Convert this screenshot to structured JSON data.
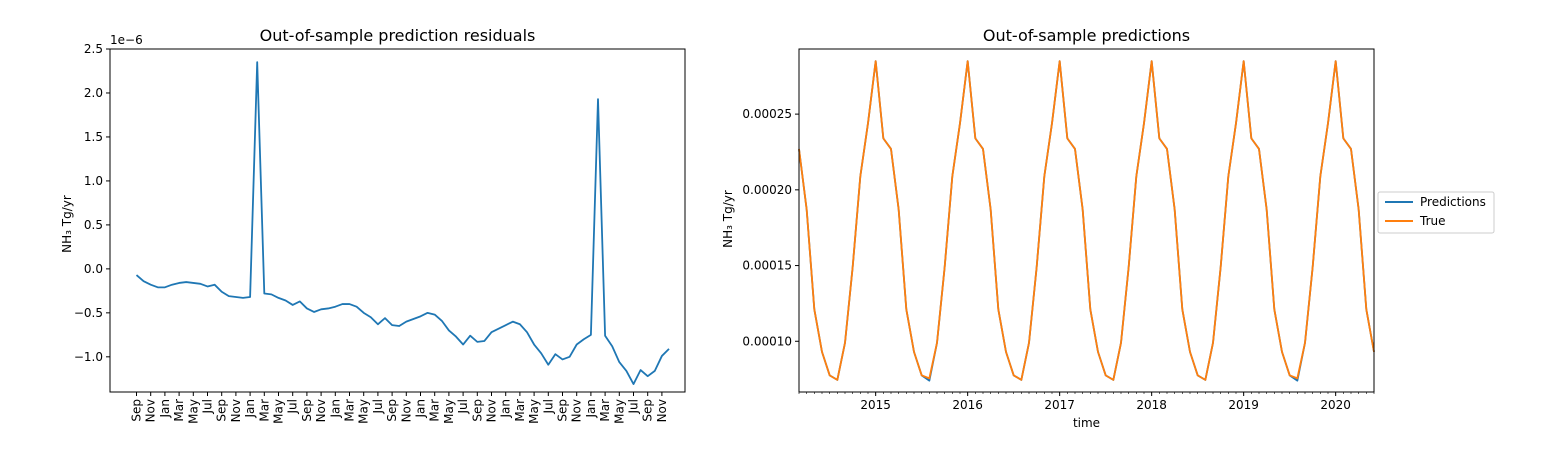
{
  "chart_data": [
    {
      "type": "line",
      "title": "Out-of-sample prediction residuals",
      "xlabel": "",
      "ylabel": "NH₃ Tg/yr",
      "offset_label": "1e−6",
      "scale": 1e-06,
      "ylim": [
        -1.4,
        2.5
      ],
      "yticks": [
        -1.0,
        -0.5,
        0.0,
        0.5,
        1.0,
        1.5,
        2.0,
        2.5
      ],
      "ytick_labels": [
        "−1.0",
        "−0.5",
        "0.0",
        "0.5",
        "1.0",
        "1.5",
        "2.0",
        "2.5"
      ],
      "x_tick_labels": [
        "Sep",
        "Nov",
        "Jan",
        "Mar",
        "May",
        "Jul",
        "Sep",
        "Nov",
        "Jan",
        "Mar",
        "May",
        "Jul",
        "Sep",
        "Nov",
        "Jan",
        "Mar",
        "May",
        "Jul",
        "Sep",
        "Nov",
        "Jan",
        "Mar",
        "May",
        "Jul",
        "Sep",
        "Nov",
        "Jan",
        "Mar",
        "May",
        "Jul",
        "Sep",
        "Nov",
        "Jan",
        "Mar",
        "May",
        "Jul",
        "Sep",
        "Nov"
      ],
      "x_tick_index_step": 2,
      "series": [
        {
          "color": "#1f77b4",
          "values": [
            -0.07,
            -0.14,
            -0.18,
            -0.21,
            -0.21,
            -0.18,
            -0.16,
            -0.15,
            -0.16,
            -0.17,
            -0.2,
            -0.18,
            -0.26,
            -0.31,
            -0.32,
            -0.33,
            -0.32,
            2.35,
            -0.28,
            -0.29,
            -0.33,
            -0.36,
            -0.41,
            -0.37,
            -0.45,
            -0.49,
            -0.46,
            -0.45,
            -0.43,
            -0.4,
            -0.4,
            -0.43,
            -0.5,
            -0.55,
            -0.63,
            -0.56,
            -0.64,
            -0.65,
            -0.6,
            -0.57,
            -0.54,
            -0.5,
            -0.52,
            -0.59,
            -0.7,
            -0.77,
            -0.86,
            -0.76,
            -0.83,
            -0.82,
            -0.72,
            -0.68,
            -0.64,
            -0.6,
            -0.63,
            -0.72,
            -0.86,
            -0.96,
            -1.09,
            -0.97,
            -1.03,
            -1.0,
            -0.86,
            -0.8,
            -0.75,
            1.93,
            -0.76,
            -0.88,
            -1.06,
            -1.16,
            -1.31,
            -1.15,
            -1.22,
            -1.16,
            -0.99,
            -0.91
          ]
        }
      ]
    },
    {
      "type": "line",
      "title": "Out-of-sample predictions",
      "xlabel": "time",
      "ylabel": "NH₃ Tg/yr",
      "ylim": [
        6.65e-05,
        0.000293
      ],
      "yticks": [
        0.0001,
        0.00015,
        0.0002,
        0.00025
      ],
      "ytick_labels": [
        "0.00010",
        "0.00015",
        "0.00020",
        "0.00025"
      ],
      "x_start": "2014-09",
      "x_end": "2020-12",
      "x_tick_labels": [
        "2015",
        "2016",
        "2017",
        "2018",
        "2019",
        "2020"
      ],
      "legend_position": "outside-right",
      "series": [
        {
          "name": "Predictions",
          "color": "#1f77b4",
          "values": [
            0.000227,
            0.000187,
            0.000121,
            9.3e-05,
            7.75e-05,
            7.45e-05,
            9.9e-05,
            0.000149,
            0.000209,
            0.000244,
            0.000285,
            0.000234,
            0.000227,
            0.000187,
            0.000121,
            9.3e-05,
            7.75e-05,
            7.4e-05,
            9.9e-05,
            0.000149,
            0.000209,
            0.000244,
            0.000285,
            0.000234,
            0.000227,
            0.000187,
            0.000121,
            9.3e-05,
            7.75e-05,
            7.45e-05,
            9.9e-05,
            0.000149,
            0.000209,
            0.000244,
            0.000285,
            0.000234,
            0.000227,
            0.000187,
            0.000121,
            9.3e-05,
            7.75e-05,
            7.45e-05,
            9.9e-05,
            0.000149,
            0.000209,
            0.000244,
            0.000285,
            0.000234,
            0.000227,
            0.000187,
            0.000121,
            9.3e-05,
            7.75e-05,
            7.45e-05,
            9.9e-05,
            0.000149,
            0.000209,
            0.000244,
            0.000285,
            0.000234,
            0.000227,
            0.000187,
            0.000121,
            9.3e-05,
            7.75e-05,
            7.4e-05,
            9.9e-05,
            0.000149,
            0.000209,
            0.000244,
            0.000285,
            0.000234,
            0.000227,
            0.000187,
            0.000121,
            9.3e-05
          ]
        },
        {
          "name": "True",
          "color": "#ff7f0e",
          "values": [
            0.000227,
            0.000187,
            0.000121,
            9.3e-05,
            7.75e-05,
            7.45e-05,
            9.9e-05,
            0.000149,
            0.000209,
            0.000244,
            0.000285,
            0.000234,
            0.000227,
            0.000187,
            0.000121,
            9.3e-05,
            7.75e-05,
            7.55e-05,
            9.9e-05,
            0.000149,
            0.000209,
            0.000244,
            0.000285,
            0.000234,
            0.000227,
            0.000187,
            0.000121,
            9.3e-05,
            7.75e-05,
            7.45e-05,
            9.9e-05,
            0.000149,
            0.000209,
            0.000244,
            0.000285,
            0.000234,
            0.000227,
            0.000187,
            0.000121,
            9.3e-05,
            7.75e-05,
            7.45e-05,
            9.9e-05,
            0.000149,
            0.000209,
            0.000244,
            0.000285,
            0.000234,
            0.000227,
            0.000187,
            0.000121,
            9.3e-05,
            7.75e-05,
            7.45e-05,
            9.9e-05,
            0.000149,
            0.000209,
            0.000244,
            0.000285,
            0.000234,
            0.000227,
            0.000187,
            0.000121,
            9.3e-05,
            7.75e-05,
            7.55e-05,
            9.9e-05,
            0.000149,
            0.000209,
            0.000244,
            0.000285,
            0.000234,
            0.000227,
            0.000187,
            0.000121,
            9.3e-05
          ]
        }
      ]
    }
  ]
}
